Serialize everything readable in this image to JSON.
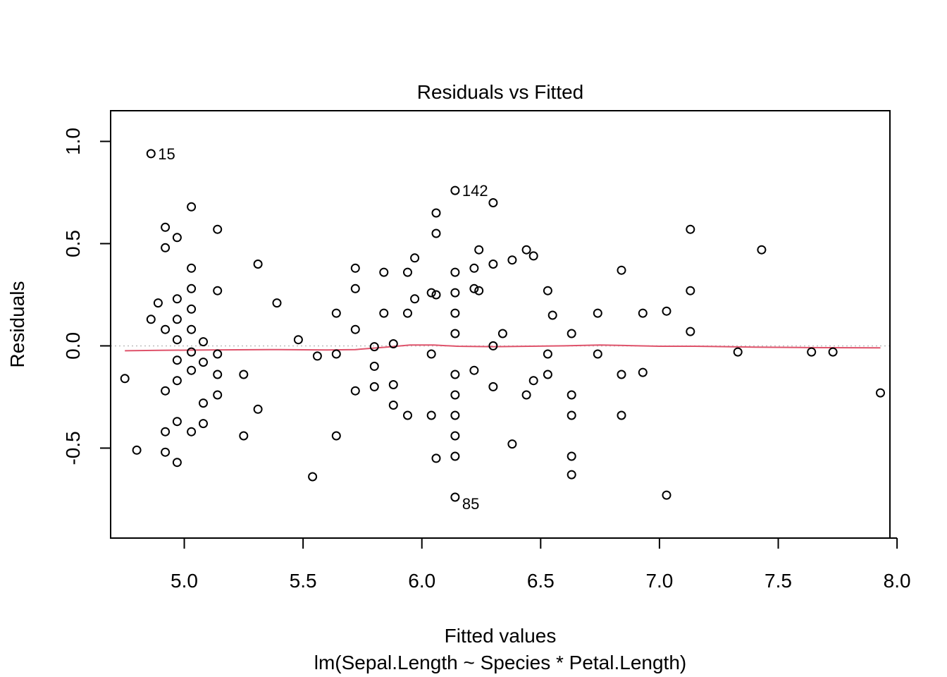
{
  "chart_data": {
    "type": "scatter",
    "title": "Residuals vs Fitted",
    "xlabel": "Fitted values",
    "subtitle": "lm(Sepal.Length ~ Species * Petal.Length)",
    "ylabel": "Residuals",
    "xlim": [
      4.69,
      7.97
    ],
    "ylim": [
      -0.94,
      1.15
    ],
    "x_ticks": [
      5.0,
      5.5,
      6.0,
      6.5,
      7.0,
      7.5,
      8.0
    ],
    "x_tick_labels": [
      "5.0",
      "5.5",
      "6.0",
      "6.5",
      "7.0",
      "7.5",
      "8.0"
    ],
    "y_ticks": [
      -0.5,
      0.0,
      0.5,
      1.0
    ],
    "y_tick_labels": [
      "-0.5",
      "0.0",
      "0.5",
      "1.0"
    ],
    "reference_line": {
      "y": 0,
      "style": "dotted",
      "color": "#bebebe"
    },
    "smooth_color": "#df536b",
    "point_color": "#000000",
    "points": [
      [
        4.75,
        -0.16
      ],
      [
        4.8,
        -0.51
      ],
      [
        4.86,
        0.13
      ],
      [
        4.86,
        0.94
      ],
      [
        4.89,
        0.21
      ],
      [
        4.92,
        0.58
      ],
      [
        4.92,
        0.48
      ],
      [
        4.92,
        0.08
      ],
      [
        4.92,
        -0.22
      ],
      [
        4.92,
        -0.42
      ],
      [
        4.92,
        -0.52
      ],
      [
        4.97,
        0.53
      ],
      [
        4.97,
        0.23
      ],
      [
        4.97,
        0.13
      ],
      [
        4.97,
        0.03
      ],
      [
        4.97,
        -0.07
      ],
      [
        4.97,
        -0.17
      ],
      [
        4.97,
        -0.37
      ],
      [
        4.97,
        -0.57
      ],
      [
        5.03,
        0.68
      ],
      [
        5.03,
        0.38
      ],
      [
        5.03,
        0.28
      ],
      [
        5.03,
        0.18
      ],
      [
        5.03,
        0.08
      ],
      [
        5.03,
        -0.03
      ],
      [
        5.03,
        -0.12
      ],
      [
        5.03,
        -0.42
      ],
      [
        5.08,
        0.02
      ],
      [
        5.08,
        -0.08
      ],
      [
        5.08,
        -0.28
      ],
      [
        5.08,
        -0.38
      ],
      [
        5.14,
        0.57
      ],
      [
        5.14,
        0.27
      ],
      [
        5.14,
        -0.04
      ],
      [
        5.14,
        -0.14
      ],
      [
        5.14,
        -0.24
      ],
      [
        5.25,
        -0.14
      ],
      [
        5.25,
        -0.44
      ],
      [
        5.31,
        0.4
      ],
      [
        5.31,
        -0.31
      ],
      [
        5.39,
        0.21
      ],
      [
        5.48,
        0.03
      ],
      [
        5.54,
        -0.64
      ],
      [
        5.56,
        -0.05
      ],
      [
        5.64,
        0.16
      ],
      [
        5.64,
        -0.04
      ],
      [
        5.64,
        -0.44
      ],
      [
        5.72,
        0.38
      ],
      [
        5.72,
        0.28
      ],
      [
        5.72,
        0.08
      ],
      [
        5.72,
        -0.22
      ],
      [
        5.8,
        -0.004
      ],
      [
        5.8,
        -0.1
      ],
      [
        5.8,
        -0.2
      ],
      [
        5.84,
        0.36
      ],
      [
        5.84,
        0.16
      ],
      [
        5.88,
        0.01
      ],
      [
        5.88,
        -0.19
      ],
      [
        5.88,
        -0.29
      ],
      [
        5.94,
        0.36
      ],
      [
        5.94,
        0.16
      ],
      [
        5.94,
        -0.34
      ],
      [
        5.97,
        0.43
      ],
      [
        5.97,
        0.23
      ],
      [
        6.04,
        0.26
      ],
      [
        6.04,
        -0.04
      ],
      [
        6.04,
        -0.34
      ],
      [
        6.06,
        0.65
      ],
      [
        6.06,
        0.55
      ],
      [
        6.06,
        0.25
      ],
      [
        6.06,
        -0.55
      ],
      [
        6.14,
        0.76
      ],
      [
        6.14,
        0.36
      ],
      [
        6.14,
        0.26
      ],
      [
        6.14,
        0.16
      ],
      [
        6.14,
        0.06
      ],
      [
        6.14,
        -0.14
      ],
      [
        6.14,
        -0.24
      ],
      [
        6.14,
        -0.34
      ],
      [
        6.14,
        -0.44
      ],
      [
        6.14,
        -0.54
      ],
      [
        6.14,
        -0.74
      ],
      [
        6.22,
        0.38
      ],
      [
        6.22,
        0.28
      ],
      [
        6.22,
        -0.12
      ],
      [
        6.24,
        0.47
      ],
      [
        6.24,
        0.27
      ],
      [
        6.3,
        0.7
      ],
      [
        6.3,
        0.4
      ],
      [
        6.3,
        0.0
      ],
      [
        6.3,
        -0.2
      ],
      [
        6.34,
        0.06
      ],
      [
        6.38,
        0.42
      ],
      [
        6.38,
        -0.48
      ],
      [
        6.44,
        0.47
      ],
      [
        6.44,
        -0.24
      ],
      [
        6.47,
        0.44
      ],
      [
        6.47,
        -0.17
      ],
      [
        6.53,
        0.27
      ],
      [
        6.53,
        -0.04
      ],
      [
        6.53,
        -0.14
      ],
      [
        6.55,
        0.15
      ],
      [
        6.63,
        0.06
      ],
      [
        6.63,
        -0.24
      ],
      [
        6.63,
        -0.34
      ],
      [
        6.63,
        -0.54
      ],
      [
        6.63,
        -0.63
      ],
      [
        6.74,
        0.16
      ],
      [
        6.74,
        -0.04
      ],
      [
        6.84,
        0.37
      ],
      [
        6.84,
        -0.14
      ],
      [
        6.84,
        -0.34
      ],
      [
        6.93,
        0.16
      ],
      [
        6.93,
        -0.13
      ],
      [
        7.03,
        0.17
      ],
      [
        7.03,
        -0.73
      ],
      [
        7.13,
        0.57
      ],
      [
        7.13,
        0.27
      ],
      [
        7.13,
        0.07
      ],
      [
        7.33,
        -0.03
      ],
      [
        7.43,
        0.47
      ],
      [
        7.64,
        -0.03
      ],
      [
        7.73,
        -0.03
      ],
      [
        7.93,
        -0.23
      ]
    ],
    "point_labels": [
      {
        "text": "15",
        "x": 4.86,
        "y": 0.94
      },
      {
        "text": "142",
        "x": 6.14,
        "y": 0.76
      },
      {
        "text": "85",
        "x": 6.14,
        "y": -0.74
      }
    ],
    "smooth": [
      [
        4.75,
        -0.024
      ],
      [
        4.9,
        -0.022
      ],
      [
        5.1,
        -0.02
      ],
      [
        5.4,
        -0.018
      ],
      [
        5.6,
        -0.02
      ],
      [
        5.72,
        -0.018
      ],
      [
        5.85,
        -0.006
      ],
      [
        5.95,
        0.004
      ],
      [
        6.05,
        0.004
      ],
      [
        6.15,
        -0.002
      ],
      [
        6.3,
        -0.004
      ],
      [
        6.45,
        -0.002
      ],
      [
        6.6,
        0.0
      ],
      [
        6.75,
        0.004
      ],
      [
        6.85,
        0.002
      ],
      [
        7.0,
        -0.002
      ],
      [
        7.15,
        -0.002
      ],
      [
        7.4,
        -0.006
      ],
      [
        7.6,
        -0.008
      ],
      [
        7.93,
        -0.01
      ]
    ]
  }
}
